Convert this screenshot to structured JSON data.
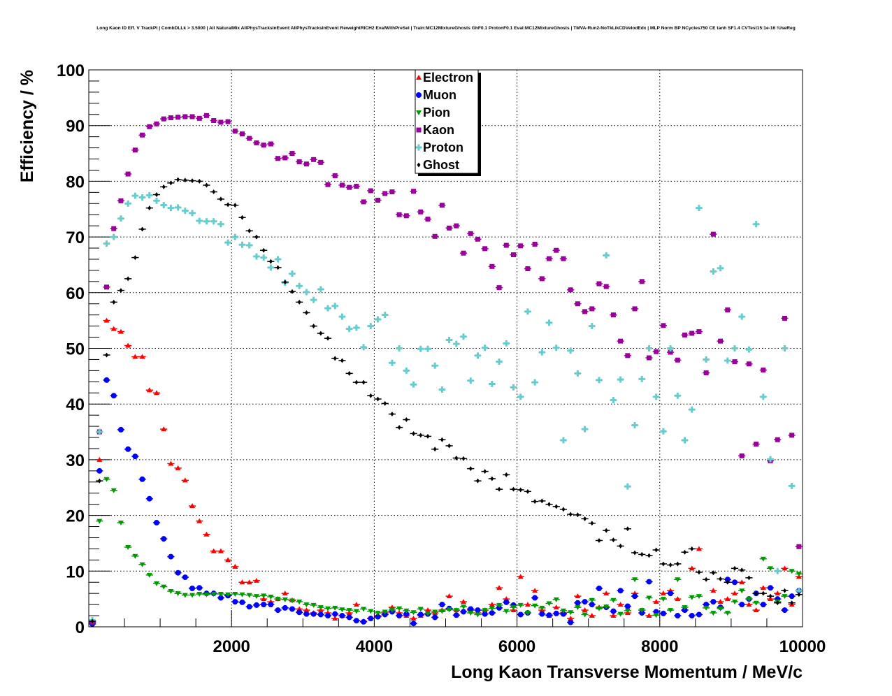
{
  "chart_data": {
    "type": "scatter",
    "title": "Long Kaon ID Eff. V TrackPt | CombDLLk > 3.5000 | All NaturalMix AllPhysTracksInEvent:AllPhysTracksInEvent ReweightRICH2 EvalWithPreSel | Train:MC12MixtureGhosts GhF0.1 ProtonF0.1 Eval:MC12MixtureGhosts | TMVA-Run2-NoTkLikCDVelodEdx | MLP Norm BP NCycles750 CE tanh SF1.4 CVTest15:1e-16 !UseReg",
    "xlabel": "Long Kaon Transverse Momentum / MeV/c",
    "ylabel": "Efficiency / %",
    "xlim": [
      0,
      10000
    ],
    "ylim": [
      0,
      100
    ],
    "x_start": 50,
    "x_bin_width": 100,
    "grid": true,
    "legend_position": "top-center",
    "x_ticks": [
      "2000",
      "4000",
      "6000",
      "8000",
      "10000"
    ],
    "y_ticks": [
      "0",
      "10",
      "20",
      "30",
      "40",
      "50",
      "60",
      "70",
      "80",
      "90",
      "100"
    ],
    "series": [
      {
        "name": "Electron",
        "color": "#ff0000",
        "marker": "triangle-up",
        "values": [
          1,
          30,
          55,
          53.5,
          53,
          50.5,
          48.5,
          48.5,
          42.5,
          42,
          35.5,
          29.3,
          28.5,
          26.3,
          21.7,
          19,
          16.6,
          13.6,
          13.6,
          12,
          10.8,
          8,
          8,
          8.3,
          5,
          4.5,
          5,
          6,
          4.8,
          3.2,
          3,
          2.5,
          3,
          2.5,
          1.5,
          2,
          2.5,
          4,
          1,
          1.5,
          2,
          2.5,
          3.5,
          2.5,
          2,
          1.5,
          2,
          3,
          2.5,
          3,
          5.5,
          3,
          4.5,
          3,
          2.5,
          3,
          4,
          7,
          5,
          3,
          9,
          4,
          6.5,
          3,
          2,
          3.5,
          2.5,
          1.5,
          5.5,
          3,
          2,
          3.5,
          6,
          2,
          4,
          2.5,
          6,
          3,
          2,
          4.5,
          6,
          6.5,
          5,
          3,
          10.5,
          14,
          4,
          6.5,
          4.5,
          5,
          6,
          8,
          4,
          3,
          7,
          5,
          6,
          10.5,
          4,
          9
        ]
      },
      {
        "name": "Muon",
        "color": "#0000ff",
        "marker": "circle",
        "values": [
          0.5,
          28,
          44.3,
          41.5,
          35.4,
          31.9,
          30.6,
          26.5,
          23,
          18.7,
          15.8,
          12.6,
          9.7,
          8.9,
          6.9,
          7,
          6,
          6,
          5.2,
          5.6,
          4.5,
          4.4,
          3.6,
          3.9,
          4,
          4,
          3,
          3.4,
          3.2,
          2.6,
          2.3,
          2.3,
          2.2,
          2,
          2.3,
          2,
          1.7,
          1.1,
          0.9,
          1.5,
          1.8,
          2.2,
          2.7,
          2,
          2.3,
          0.6,
          2.2,
          2.3,
          1.7,
          4,
          3.3,
          2.1,
          2.7,
          3.2,
          3,
          2.3,
          2.5,
          3.4,
          4.4,
          3.9,
          2.2,
          2.5,
          5.2,
          2.3,
          2.1,
          2.4,
          2.3,
          0.8,
          4.3,
          4.5,
          4,
          6.9,
          3.5,
          2.8,
          6.5,
          3.7,
          5.5,
          2.5,
          8.1,
          2.7,
          2.4,
          6,
          2,
          3,
          2,
          2.2,
          4,
          4.5,
          3.5,
          8.5,
          8,
          4,
          5,
          6,
          4,
          7,
          5,
          3,
          5.5,
          6.5
        ]
      },
      {
        "name": "Pion",
        "color": "#009900",
        "marker": "triangle-down",
        "values": [
          0.7,
          19,
          26.5,
          24.5,
          18.7,
          14.3,
          12.7,
          11.2,
          9.3,
          7.8,
          7.2,
          6.4,
          6,
          5.7,
          5.7,
          5.9,
          5.8,
          5.9,
          5.9,
          5.8,
          5.9,
          5.8,
          5.7,
          5.5,
          5.6,
          5.4,
          5,
          4.9,
          4.7,
          4.5,
          4,
          3.9,
          3.5,
          3.3,
          3.4,
          3.1,
          3,
          2.8,
          3.2,
          2.8,
          2.5,
          2.7,
          3,
          3.3,
          2.9,
          2.6,
          3.2,
          2.4,
          2.7,
          2.8,
          3.1,
          3,
          3.6,
          2.5,
          2.2,
          3,
          3.3,
          3.9,
          2.8,
          3.5,
          3.9,
          2.5,
          3.8,
          3.4,
          4.2,
          4.9,
          2.9,
          2.6,
          3.5,
          2.2,
          4.8,
          3.3,
          3.6,
          4.8,
          2.3,
          2.9,
          8.5,
          3,
          5.2,
          2.1,
          5,
          3,
          8.5,
          3.5,
          5.3,
          5.5,
          3.4,
          2.5,
          3.3,
          2.5,
          4.5,
          6.5,
          5,
          4.3,
          12.2,
          10.5,
          4.5,
          5.5,
          10,
          9.5
        ]
      },
      {
        "name": "Kaon",
        "color": "#990099",
        "marker": "square",
        "values": [
          0.8,
          35,
          61,
          71.5,
          76.5,
          81.3,
          85.6,
          88.3,
          89.8,
          90.3,
          91.2,
          91.4,
          91.5,
          91.6,
          91.6,
          91.3,
          91.8,
          90.9,
          90.6,
          90.7,
          89,
          88.5,
          87.7,
          86.9,
          86.5,
          86.7,
          84.1,
          84.2,
          85,
          83.5,
          83.1,
          83.9,
          83.4,
          79.4,
          81,
          79.3,
          78.9,
          79.1,
          76.3,
          78.3,
          76.6,
          77.8,
          78.1,
          74,
          73.8,
          78.2,
          74.5,
          73.2,
          70.1,
          75.7,
          71.6,
          72,
          67.1,
          70.6,
          69.6,
          67.9,
          64.7,
          60.9,
          68.5,
          66.8,
          68.4,
          64.3,
          68.7,
          62.5,
          66.1,
          67.6,
          66.1,
          60.5,
          58,
          56.6,
          57.1,
          61.6,
          61.1,
          56,
          51.3,
          48.7,
          57.1,
          62,
          48.3,
          49.4,
          54.1,
          49.3,
          47.9,
          52.4,
          52.7,
          53,
          45.6,
          70.5,
          51.3,
          56.9,
          47.6,
          30.7,
          47.2,
          32.8,
          46.1,
          29.8,
          33.6,
          55.4,
          34.4,
          14.4
        ]
      },
      {
        "name": "Proton",
        "color": "#66cccc",
        "marker": "cross",
        "values": [
          1.2,
          35,
          68.8,
          70,
          73.3,
          76,
          77.4,
          77.1,
          77.5,
          76.5,
          75.7,
          75.2,
          75.3,
          74.7,
          74.3,
          72.9,
          72.8,
          72.8,
          72.3,
          69,
          70,
          68.6,
          68.5,
          66.5,
          66.3,
          64.5,
          66,
          61.8,
          63.4,
          61.2,
          60.1,
          58.7,
          60.6,
          57.2,
          57.6,
          55.7,
          53.5,
          53.7,
          50.2,
          54,
          55.2,
          56,
          47.4,
          50,
          46,
          43.5,
          49.9,
          49.9,
          46.9,
          42.6,
          51.5,
          50.8,
          52.1,
          44.2,
          48.7,
          50.1,
          43.6,
          47.6,
          50.9,
          43,
          41.3,
          56.6,
          43.9,
          49.3,
          54.6,
          50.1,
          33.5,
          49.6,
          45.5,
          35.5,
          54,
          44.3,
          66.7,
          40.7,
          44.4,
          25.2,
          36.2,
          44.5,
          50,
          41.3,
          35.1,
          50,
          41.5,
          33.5,
          39,
          75.2,
          48,
          63.8,
          64.4,
          47.8,
          50,
          55.7,
          49.8,
          72.3,
          41.3,
          30.1,
          10,
          50,
          25.3,
          6.5
        ]
      },
      {
        "name": "Ghost",
        "color": "#000000",
        "marker": "star",
        "values": [
          1,
          26.2,
          48.8,
          58.3,
          60.4,
          62.5,
          66.3,
          71.4,
          75.2,
          77.6,
          79,
          79.7,
          80.3,
          80.2,
          80.1,
          80,
          79.3,
          78.1,
          76.8,
          75.8,
          75.7,
          73.5,
          71.1,
          70,
          67.6,
          65.6,
          64.5,
          61.9,
          60.2,
          58.3,
          56.4,
          54,
          52.7,
          51.8,
          48.2,
          47.8,
          45.5,
          43.9,
          43.9,
          41.5,
          40.9,
          40.1,
          38.2,
          35.8,
          37.2,
          34.7,
          34.4,
          34.2,
          31.9,
          33.6,
          32.5,
          30.3,
          30.2,
          28.4,
          26.2,
          27.9,
          26.6,
          24.7,
          27.3,
          24.7,
          24.6,
          24.3,
          22.5,
          22.6,
          22,
          21.6,
          21.1,
          20.2,
          20.1,
          19.4,
          18.6,
          15.5,
          17.3,
          15.6,
          14.5,
          17.6,
          13.3,
          13,
          12.8,
          13.8,
          11.3,
          11.1,
          11.3,
          13.4,
          14,
          9.8,
          8.5,
          9.7,
          8.6,
          8,
          10.5,
          10.2,
          8.8,
          6,
          6,
          5.5,
          4.3,
          6.5,
          4.3,
          5.8
        ]
      }
    ]
  }
}
